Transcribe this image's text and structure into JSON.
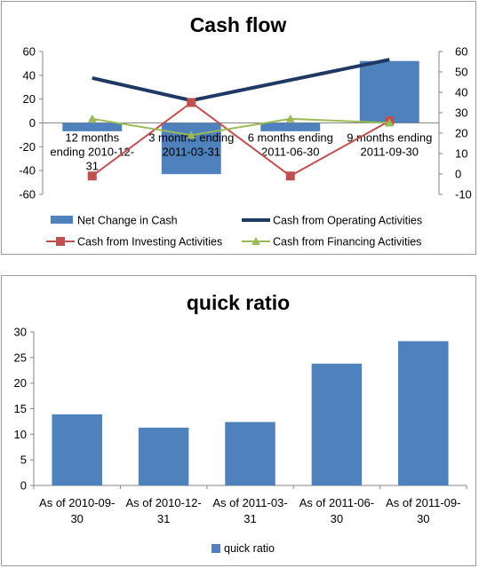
{
  "chart_data": [
    {
      "type": "bar+line",
      "title": "Cash flow",
      "categories": [
        [
          "12 months",
          "ending 2010-12-",
          "31"
        ],
        [
          "3 months ending",
          "2011-03-31"
        ],
        [
          "6 months ending",
          "2011-06-30"
        ],
        [
          "9 months ending",
          "2011-09-30"
        ]
      ],
      "ylim_left": [
        -60,
        60
      ],
      "yticks_left": [
        -60,
        -40,
        -20,
        0,
        20,
        40,
        60
      ],
      "ylim_right": [
        -10,
        60
      ],
      "yticks_right": [
        -10,
        0,
        10,
        20,
        30,
        40,
        50,
        60
      ],
      "series": [
        {
          "name": "Net Change in Cash",
          "kind": "bar",
          "axis": "left",
          "color": "#4f81bd",
          "values": [
            -7,
            -43,
            -7,
            52
          ]
        },
        {
          "name": "Cash from Operating Activities",
          "kind": "line",
          "axis": "right",
          "color": "#1f3864",
          "values": [
            47,
            36,
            46,
            56
          ]
        },
        {
          "name": "Cash from Investing Activities",
          "kind": "line",
          "axis": "right",
          "color": "#c0504d",
          "marker": "square",
          "values": [
            -1,
            35,
            -1,
            26
          ]
        },
        {
          "name": "Cash from Financing Activities",
          "kind": "line",
          "axis": "right",
          "color": "#9bbb59",
          "marker": "triangle",
          "values": [
            27,
            19,
            27,
            25
          ]
        }
      ],
      "grid": false,
      "legend": "bottom"
    },
    {
      "type": "bar",
      "title": "quick ratio",
      "categories": [
        [
          "As of 2010-09-",
          "30"
        ],
        [
          "As of 2010-12-",
          "31"
        ],
        [
          "As of 2011-03-",
          "31"
        ],
        [
          "As of 2011-06-",
          "30"
        ],
        [
          "As of 2011-09-",
          "30"
        ]
      ],
      "ylim": [
        0,
        30
      ],
      "yticks": [
        0,
        5,
        10,
        15,
        20,
        25,
        30
      ],
      "series": [
        {
          "name": "quick ratio",
          "color": "#4f81bd",
          "values": [
            13.9,
            11.3,
            12.4,
            23.8,
            28.2
          ]
        }
      ],
      "grid": false,
      "legend": "bottom"
    }
  ]
}
